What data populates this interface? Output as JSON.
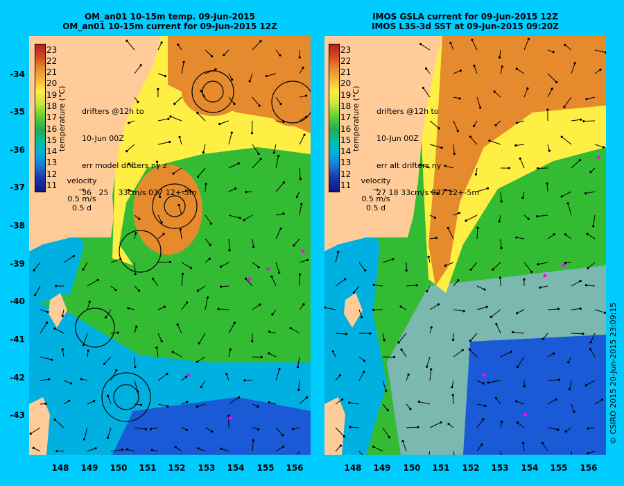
{
  "left_panel": {
    "title_line1": "OM_an01 10-15m temp. 09-Jun-2015",
    "title_line2": "OM_an01 10-15m current for 09-Jun-2015 12Z",
    "info_lines": [
      "drifters @12h to",
      "10-Jun 00Z",
      "err model drifters ny z",
      "36   25    33cm/s 037 12+-5m"
    ],
    "velocity_label": "velocity",
    "velocity_scale": "0.5 m/s",
    "velocity_time": "0.5 d"
  },
  "right_panel": {
    "title_line1": "IMOS GSLA current for 09-Jun-2015 12Z",
    "title_line2": "IMOS L3S-3d SST at 09-Jun-2015 09:20Z",
    "info_lines": [
      "drifters @12h to",
      "10-Jun 00Z",
      "err alt drifters ny",
      "27 18 33cm/s 037 12+-5m"
    ],
    "velocity_label": "velocity",
    "velocity_scale": "0.5 m/s",
    "velocity_time": "0.5 d"
  },
  "colorbar": {
    "title": "temperature (°C)",
    "ticks": [
      "23",
      "22",
      "21",
      "20",
      "19",
      "18",
      "17",
      "16",
      "15",
      "14",
      "13",
      "12",
      "11"
    ]
  },
  "lat_labels": [
    "-34",
    "-35",
    "-36",
    "-37",
    "-38",
    "-39",
    "-40",
    "-41",
    "-42",
    "-43"
  ],
  "lon_labels": [
    "148",
    "149",
    "150",
    "151",
    "152",
    "153",
    "154",
    "155",
    "156"
  ],
  "credit": "© CSIRO 2015  20-Jun-2015 23:09:15",
  "colors": {
    "background": "#00ccff",
    "land": "#ffcc99",
    "warm": "#e68a2e",
    "mid": "#ffee44",
    "green": "#33bb33",
    "cool": "#00b0e0",
    "cold": "#1a5ad6"
  }
}
